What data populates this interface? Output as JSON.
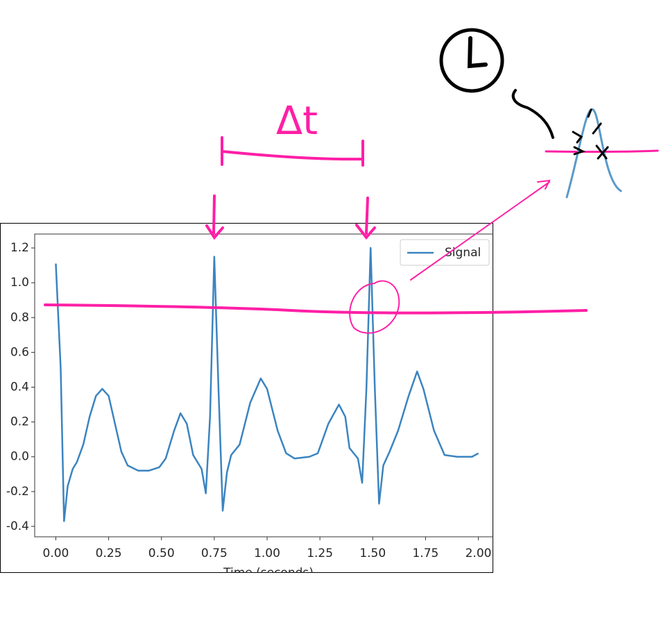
{
  "chart_data": {
    "type": "line",
    "x_label": "Time (seconds)",
    "annotation": "Δt",
    "series": [
      {
        "name": "Signal",
        "color": "#3b84c0",
        "x": [
          0,
          0.023,
          0.039,
          0.056,
          0.08,
          0.1,
          0.13,
          0.16,
          0.19,
          0.22,
          0.25,
          0.28,
          0.31,
          0.34,
          0.39,
          0.44,
          0.49,
          0.52,
          0.56,
          0.59,
          0.62,
          0.65,
          0.69,
          0.71,
          0.73,
          0.75,
          0.77,
          0.79,
          0.81,
          0.83,
          0.87,
          0.92,
          0.97,
          1.0,
          1.05,
          1.09,
          1.13,
          1.2,
          1.24,
          1.29,
          1.34,
          1.37,
          1.39,
          1.43,
          1.45,
          1.47,
          1.49,
          1.51,
          1.53,
          1.55,
          1.58,
          1.62,
          1.67,
          1.71,
          1.74,
          1.79,
          1.84,
          1.9,
          1.97,
          2.0
        ],
        "values": [
          1.11,
          0.51,
          -0.37,
          -0.17,
          -0.07,
          -0.03,
          0.07,
          0.23,
          0.35,
          0.39,
          0.35,
          0.19,
          0.03,
          -0.05,
          -0.08,
          -0.08,
          -0.06,
          -0.01,
          0.15,
          0.25,
          0.19,
          0.01,
          -0.07,
          -0.21,
          0.23,
          1.15,
          0.39,
          -0.31,
          -0.09,
          0.01,
          0.07,
          0.31,
          0.45,
          0.39,
          0.15,
          0.02,
          -0.01,
          0.0,
          0.02,
          0.19,
          0.3,
          0.23,
          0.05,
          -0.01,
          -0.15,
          0.39,
          1.2,
          0.39,
          -0.27,
          -0.05,
          0.03,
          0.15,
          0.35,
          0.49,
          0.39,
          0.15,
          0.01,
          0.0,
          0.0,
          0.02
        ]
      }
    ],
    "xlim": [
      -0.1,
      2.1
    ],
    "ylim": [
      -0.46,
      1.28
    ],
    "xticks": [
      {
        "value": 0,
        "label": "0.00"
      },
      {
        "value": 0.25,
        "label": "0.25"
      },
      {
        "value": 0.5,
        "label": "0.50"
      },
      {
        "value": 0.75,
        "label": "0.75"
      },
      {
        "value": 1,
        "label": "1.00"
      },
      {
        "value": 1.25,
        "label": "1.25"
      },
      {
        "value": 1.5,
        "label": "1.50"
      },
      {
        "value": 1.75,
        "label": "1.75"
      },
      {
        "value": 2,
        "label": "2.00"
      }
    ],
    "yticks": [
      -0.4,
      -0.2,
      {
        "value": 0,
        "label": "0.0"
      },
      0.2,
      0.4,
      0.6,
      0.8,
      {
        "value": 1,
        "label": "1.0"
      },
      1.2
    ],
    "legend": "upper right"
  }
}
